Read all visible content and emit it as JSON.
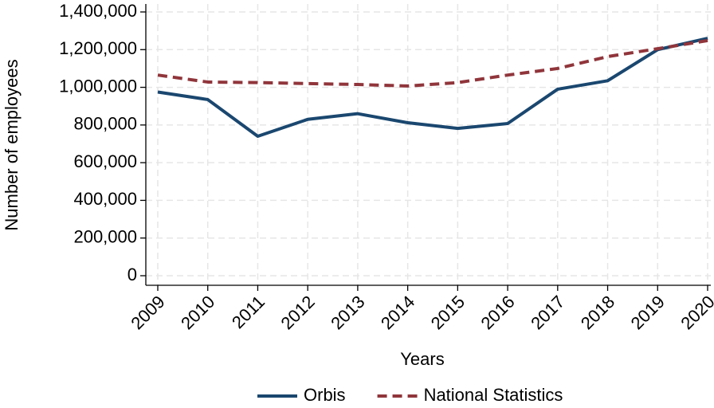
{
  "chart_data": {
    "type": "line",
    "x_label": "Years",
    "y_label": "Number of employees",
    "x": [
      2009,
      2010,
      2011,
      2012,
      2013,
      2014,
      2015,
      2016,
      2017,
      2018,
      2019,
      2020
    ],
    "xlim": [
      2009,
      2020
    ],
    "xticks": [
      2009,
      2010,
      2011,
      2012,
      2013,
      2014,
      2015,
      2016,
      2017,
      2018,
      2019,
      2020
    ],
    "ylim": [
      0,
      1400000
    ],
    "yticks": [
      0,
      {
        "value": 200000,
        "label": "200,000"
      },
      {
        "value": 400000,
        "label": "400,000"
      },
      {
        "value": 600000,
        "label": "600,000"
      },
      {
        "value": 800000,
        "label": "800,000"
      },
      {
        "value": 1000000,
        "label": "1,000,000"
      },
      {
        "value": 1200000,
        "label": "1,200,000"
      },
      {
        "value": 1400000,
        "label": "1,400,000"
      }
    ],
    "grid": true,
    "legend": "bottom",
    "series": [
      {
        "name": "Orbis",
        "color": "#1a476f",
        "dash": "solid",
        "values": [
          975000,
          935000,
          740000,
          830000,
          860000,
          812000,
          782000,
          808000,
          990000,
          1035000,
          1200000,
          1260000
        ]
      },
      {
        "name": "National Statistics",
        "color": "#90353b",
        "dash": "dashed",
        "values": [
          1065000,
          1028000,
          1025000,
          1020000,
          1015000,
          1007000,
          1025000,
          1065000,
          1100000,
          1163000,
          1205000,
          1248000
        ]
      }
    ]
  }
}
